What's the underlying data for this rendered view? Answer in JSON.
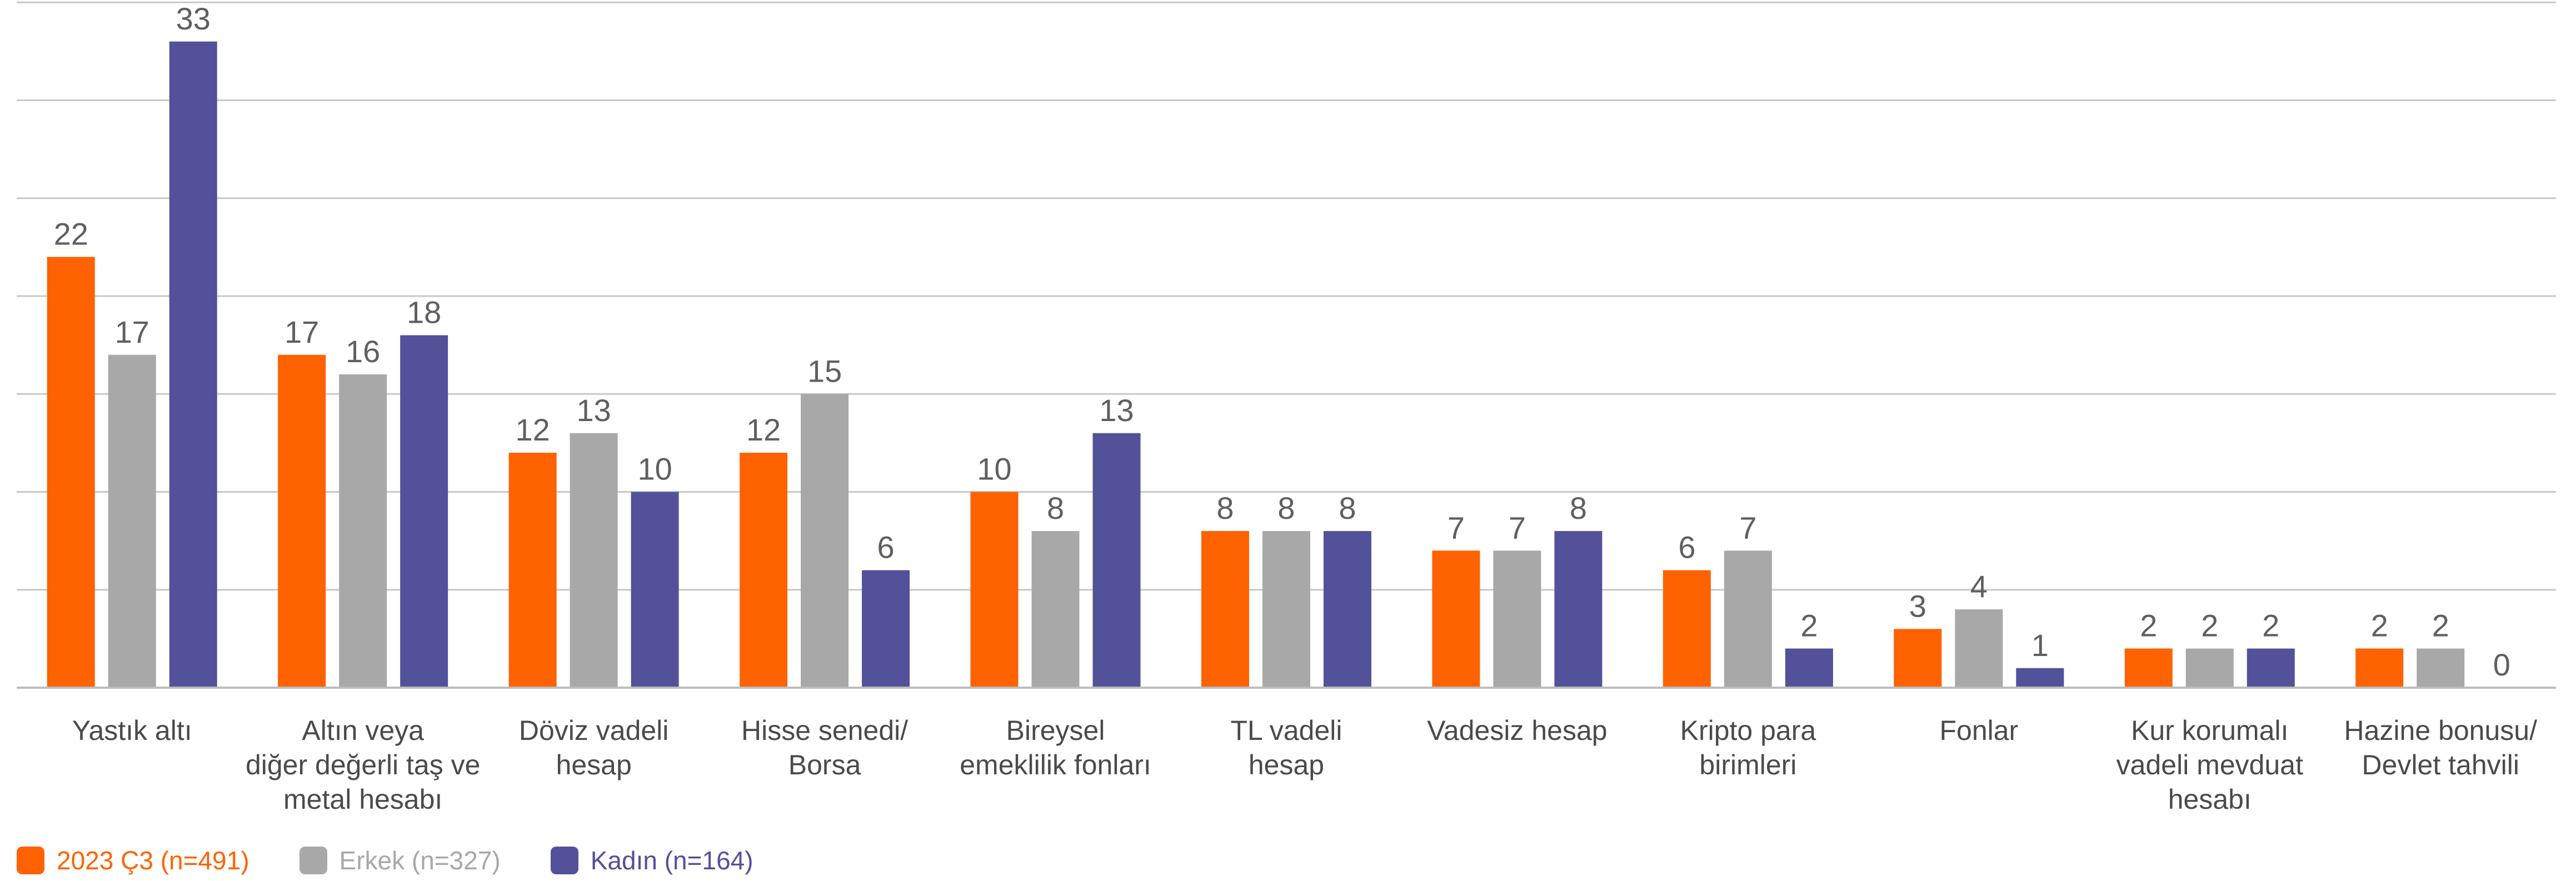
{
  "chart_data": {
    "type": "bar",
    "categories": [
      [
        "Yastık altı"
      ],
      [
        "Altın veya",
        "diğer değerli taş ve",
        "metal hesabı"
      ],
      [
        "Döviz vadeli",
        "hesap"
      ],
      [
        "Hisse senedi/",
        "Borsa"
      ],
      [
        "Bireysel",
        "emeklilik fonları"
      ],
      [
        "TL vadeli",
        "hesap"
      ],
      [
        "Vadesiz hesap"
      ],
      [
        "Kripto para",
        "birimleri"
      ],
      [
        "Fonlar"
      ],
      [
        "Kur korumalı",
        "vadeli mevduat",
        "hesabı"
      ],
      [
        "Hazine bonusu/",
        "Devlet tahvili"
      ]
    ],
    "series": [
      {
        "name": "2023 Ç3 (n=491)",
        "color": "#ff6200",
        "values": [
          22,
          17,
          12,
          12,
          10,
          8,
          7,
          6,
          3,
          2,
          2
        ]
      },
      {
        "name": "Erkek (n=327)",
        "color": "#a8a8a8",
        "values": [
          17,
          16,
          13,
          15,
          8,
          8,
          7,
          7,
          4,
          2,
          2
        ]
      },
      {
        "name": "Kadın (n=164)",
        "color": "#525199",
        "values": [
          33,
          18,
          10,
          6,
          13,
          8,
          8,
          2,
          1,
          2,
          0
        ]
      }
    ],
    "ylim": [
      0,
      35
    ],
    "grid": true,
    "legend_position": "bottom-left"
  }
}
